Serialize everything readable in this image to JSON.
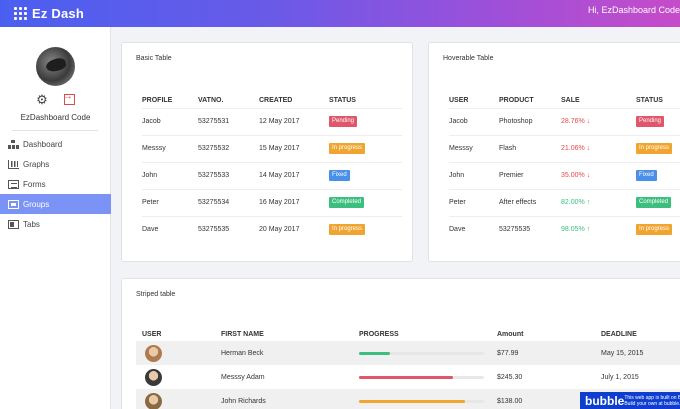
{
  "header": {
    "brand": "Ez Dash",
    "greeting": "Hi, EzDashboard Code"
  },
  "sidebar": {
    "user_name": "EzDashboard Code",
    "items": [
      {
        "label": "Dashboard",
        "icon": "dashboard-icon"
      },
      {
        "label": "Graphs",
        "icon": "graphs-icon"
      },
      {
        "label": "Forms",
        "icon": "forms-icon"
      },
      {
        "label": "Groups",
        "icon": "groups-icon",
        "active": true
      },
      {
        "label": "Tabs",
        "icon": "tabs-icon"
      }
    ]
  },
  "basic_table": {
    "title": "Basic Table",
    "headers": [
      "PROFILE",
      "VATNO.",
      "CREATED",
      "STATUS"
    ],
    "rows": [
      {
        "profile": "Jacob",
        "vat": "53275531",
        "created": "12 May 2017",
        "status": "Pending",
        "color": "#e0566b"
      },
      {
        "profile": "Messsy",
        "vat": "53275532",
        "created": "15 May 2017",
        "status": "In progress",
        "color": "#f0a530"
      },
      {
        "profile": "John",
        "vat": "53275533",
        "created": "14 May 2017",
        "status": "Fixed",
        "color": "#4a8fe8"
      },
      {
        "profile": "Peter",
        "vat": "53275534",
        "created": "16 May 2017",
        "status": "Completed",
        "color": "#3cbf7e"
      },
      {
        "profile": "Dave",
        "vat": "53275535",
        "created": "20 May 2017",
        "status": "In progress",
        "color": "#f0a530"
      }
    ]
  },
  "hover_table": {
    "title": "Hoverable Table",
    "headers": [
      "USER",
      "PRODUCT",
      "SALE",
      "STATUS"
    ],
    "rows": [
      {
        "user": "Jacob",
        "product": "Photoshop",
        "sale": "28.76%",
        "trend": "down",
        "status": "Pending",
        "color": "#e0566b"
      },
      {
        "user": "Messsy",
        "product": "Flash",
        "sale": "21.06%",
        "trend": "down",
        "status": "In progress",
        "color": "#f0a530"
      },
      {
        "user": "John",
        "product": "Premier",
        "sale": "35.00%",
        "trend": "down",
        "status": "Fixed",
        "color": "#4a8fe8"
      },
      {
        "user": "Peter",
        "product": "After effects",
        "sale": "82.00%",
        "trend": "up",
        "status": "Completed",
        "color": "#3cbf7e"
      },
      {
        "user": "Dave",
        "product": "53275535",
        "sale": "98.05%",
        "trend": "up",
        "status": "In progress",
        "color": "#f0a530"
      }
    ]
  },
  "striped_table": {
    "title": "Striped table",
    "headers": [
      "USER",
      "FIRST NAME",
      "PROGRESS",
      "Amount",
      "DEADLINE"
    ],
    "rows": [
      {
        "first_name": "Herman Beck",
        "progress": 0.25,
        "bar_color": "#3cbf7e",
        "amount": "$77.99",
        "deadline": "May 15, 2015",
        "face": "#b07a4f"
      },
      {
        "first_name": "Messsy Adam",
        "progress": 0.75,
        "bar_color": "#e0566b",
        "amount": "$245.30",
        "deadline": "July 1, 2015",
        "face": "#3a3a3a"
      },
      {
        "first_name": "John Richards",
        "progress": 0.85,
        "bar_color": "#f0a530",
        "amount": "$138.00",
        "deadline": "",
        "face": "#8a6a40"
      }
    ]
  },
  "bubble": {
    "logo": "bubble",
    "line1": "This web app is built on Bubble.",
    "line2": "Build your own at bubble.io"
  }
}
